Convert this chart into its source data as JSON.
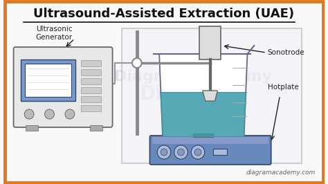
{
  "title": "Ultrasound-Assisted Extraction (UAE)",
  "title_fontsize": 13,
  "bg_color": "#f8f8f8",
  "border_color": "#e07820",
  "labels": {
    "ultrasonic_generator": "Ultrasonic\nGenerator",
    "sonotrode": "Sonotrode",
    "hotplate": "Hotplate",
    "watermark": "diagramacademy.com"
  },
  "label_fontsize": 7.5,
  "watermark_fontsize": 6.5,
  "colors": {
    "chamber_fill": "#f0f0f8",
    "chamber_border": "#aaaaaa",
    "beaker_fill": "#ffffff",
    "beaker_border": "#666688",
    "beaker_liquid": "#3a9aaa",
    "hotplate_fill": "#6688bb",
    "hotplate_border": "#334466",
    "hotplate_top": "#8899cc",
    "generator_fill": "#e8e8e8",
    "generator_border": "#666666",
    "generator_screen": "#7799cc",
    "screen_inner": "#ffffff",
    "sonotrode_body": "#dddddd",
    "sonotrode_border": "#666666",
    "stand_color": "#888888",
    "cable_color": "#999999",
    "arrow_color": "#222222",
    "text_color": "#222222",
    "watermark_bg": "#dde0f0"
  }
}
